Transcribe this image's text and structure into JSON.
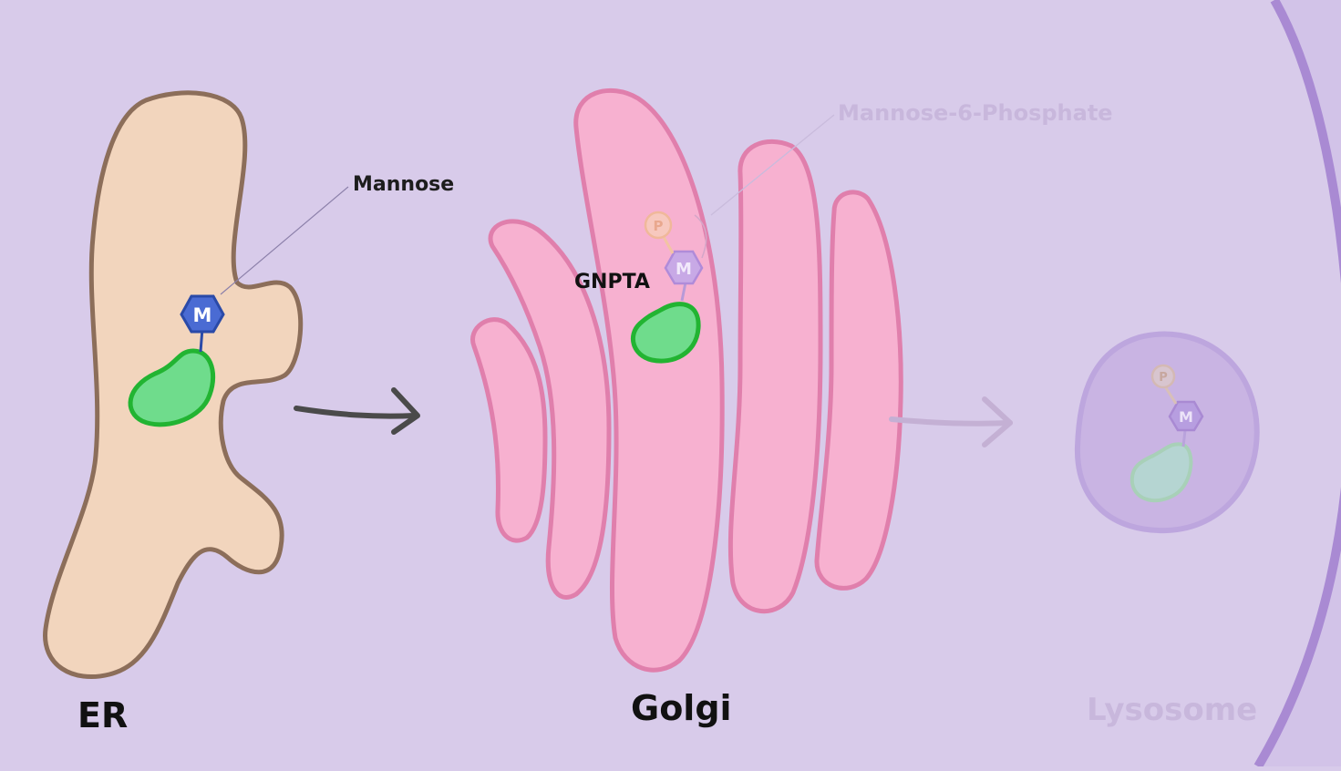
{
  "labels": {
    "er": "ER",
    "golgi": "Golgi",
    "lysosome": "Lysosome",
    "mannose": "Mannose",
    "gnpta": "GNPTA",
    "m6p": "Mannose-6-Phosphate"
  },
  "glyphs": {
    "mannose_letter": "M",
    "phosphate_letter": "P"
  },
  "colors": {
    "background": "#d8cbea",
    "cell_membrane": "#a98ad3",
    "er_fill": "#f2d5bd",
    "er_stroke": "#8c6e5a",
    "golgi_fill": "#f7b1d0",
    "golgi_stroke": "#e07fac",
    "protein_fill": "#6fdc8c",
    "protein_stroke": "#22b432",
    "mannose_fill": "#4a6bd3",
    "mannose_stroke": "#2a4aa8",
    "lysosome_fill": "#c9b4e3",
    "lysosome_stroke": "#bda6de",
    "arrow_dark": "#4a4a4a",
    "arrow_faded": "#c4b0d4",
    "faded_text": "#c8b7dc"
  }
}
